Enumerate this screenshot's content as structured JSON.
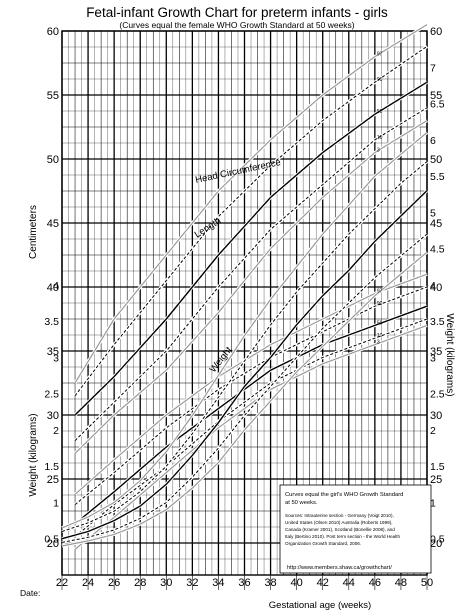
{
  "chart_data": {
    "type": "line",
    "title": "Fetal-infant Growth Chart for preterm infants - girls",
    "subtitle": "(Curves equal the female WHO Growth Standard at 50 weeks)",
    "xlabel": "Gestational age (weeks)",
    "ylabel_left_top": "Centimeters",
    "ylabel_left_bottom": "Weight (kilograms)",
    "ylabel_right": "Weight (kilograms)",
    "date_label": "Date:",
    "x_ticks": [
      "22",
      "24",
      "26",
      "28",
      "30",
      "32",
      "34",
      "36",
      "38",
      "40",
      "42",
      "44",
      "46",
      "48",
      "50"
    ],
    "xlim": [
      22,
      50
    ],
    "cm_ticks": [
      "20",
      "25",
      "30",
      "35",
      "40",
      "45",
      "50",
      "55",
      "60"
    ],
    "cm_range": [
      17.5,
      60
    ],
    "kg_ticks_left": [
      "0.5",
      "1",
      "1.5",
      "2",
      "2.5",
      "3",
      "3.5",
      "4"
    ],
    "kg_ticks_right": [
      "0.5",
      "1",
      "1.5",
      "2",
      "2.5",
      "3",
      "3.5",
      "4",
      "4.5",
      "5",
      "5.5",
      "6",
      "6.5",
      "7"
    ],
    "kg_range": [
      0,
      7.5
    ],
    "grid": true,
    "curve_labels": {
      "length": "Length",
      "head": "Head Circumference",
      "weight": "Weight"
    },
    "percentile_labels": [
      "97",
      "90",
      "50",
      "10",
      "3"
    ],
    "length": {
      "x": [
        23,
        26,
        30,
        34,
        38,
        42,
        46,
        50
      ],
      "series": [
        {
          "name": "97",
          "values": [
            32.5,
            37.5,
            42.5,
            47.5,
            51.5,
            55,
            58,
            60.5
          ]
        },
        {
          "name": "90",
          "values": [
            31.5,
            35.5,
            40.5,
            45.5,
            49.5,
            53,
            56,
            58.8
          ]
        },
        {
          "name": "50",
          "values": [
            30,
            33,
            37.5,
            42.5,
            47,
            50.5,
            53.5,
            56
          ]
        },
        {
          "name": "10",
          "values": [
            28,
            31,
            35,
            40,
            44.5,
            48,
            51.5,
            54
          ]
        },
        {
          "name": "3",
          "values": [
            27,
            30,
            33.5,
            38,
            43,
            47,
            50.5,
            53
          ]
        }
      ]
    },
    "head": {
      "x": [
        23,
        26,
        30,
        34,
        38,
        42,
        46,
        50
      ],
      "series": [
        {
          "name": "97",
          "values": [
            23.8,
            26.5,
            30,
            33,
            35.5,
            37.5,
            39.5,
            41
          ]
        },
        {
          "name": "90",
          "values": [
            23,
            25.5,
            29,
            32,
            34.5,
            36.5,
            38.5,
            40
          ]
        },
        {
          "name": "50",
          "values": [
            21.5,
            24,
            27.5,
            30.5,
            33.5,
            35.5,
            37,
            38.5
          ]
        },
        {
          "name": "10",
          "values": [
            20.5,
            23,
            26,
            29.5,
            32.5,
            34.5,
            36,
            37.5
          ]
        },
        {
          "name": "3",
          "values": [
            19.5,
            22,
            25.5,
            29,
            32,
            34,
            35.5,
            37
          ]
        }
      ]
    },
    "weight": {
      "x": [
        22,
        24,
        26,
        28,
        30,
        32,
        34,
        36,
        38,
        40,
        42,
        44,
        46,
        48,
        50
      ],
      "series": [
        {
          "name": "97",
          "values": [
            0.65,
            0.8,
            1.0,
            1.3,
            1.7,
            2.2,
            2.75,
            3.3,
            3.8,
            4.25,
            4.7,
            5.1,
            5.5,
            5.8,
            6.1
          ]
        },
        {
          "name": "90",
          "values": [
            0.6,
            0.72,
            0.88,
            1.15,
            1.5,
            1.95,
            2.45,
            2.95,
            3.45,
            3.9,
            4.3,
            4.7,
            5.05,
            5.4,
            5.7
          ]
        },
        {
          "name": "50",
          "values": [
            0.5,
            0.6,
            0.75,
            0.95,
            1.25,
            1.65,
            2.1,
            2.6,
            3.0,
            3.45,
            3.85,
            4.2,
            4.6,
            4.95,
            5.3
          ]
        },
        {
          "name": "10",
          "values": [
            0.45,
            0.52,
            0.62,
            0.78,
            1.0,
            1.35,
            1.75,
            2.2,
            2.6,
            3.0,
            3.4,
            3.75,
            4.1,
            4.4,
            4.7
          ]
        },
        {
          "name": "3",
          "values": [
            0.4,
            0.47,
            0.56,
            0.7,
            0.9,
            1.2,
            1.55,
            2.0,
            2.4,
            2.8,
            3.15,
            3.5,
            3.85,
            4.15,
            4.45
          ]
        }
      ]
    },
    "info_box": {
      "heading": "Curves equal the girl's WHO Growth Standard at 50 weeks.",
      "lines": [
        "Sources: Intrauterine section - Germany (Voigt 2010),",
        "United States (Olsen 2010) Australia (Roberts 1999),",
        "Canada (Kramer 2001), Scotland (Bonellie 2008), and",
        "Italy (Bertino 2010). Post term section - the World Health",
        "Organization Growth Standard, 2006."
      ],
      "url": "http://www.members.shaw.ca/growthchart/"
    },
    "colors": {
      "line": "#000000",
      "outer_percentile": "#9a9a9a",
      "grid": "#000000"
    }
  }
}
